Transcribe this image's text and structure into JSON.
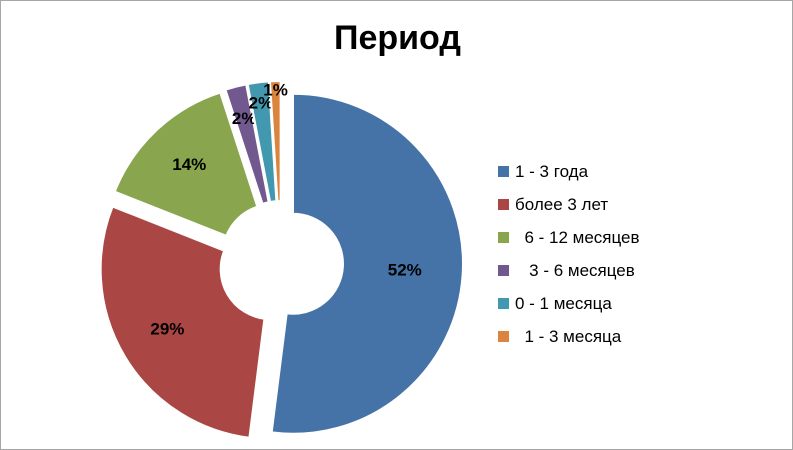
{
  "chart_data": {
    "type": "pie",
    "variant": "doughnut-exploded",
    "title": "Период",
    "labels": [
      "1 - 3 года",
      "более 3 лет",
      "  6 - 12 месяцев",
      "   3 - 6 месяцев",
      "0 - 1 месяца",
      "  1 - 3 месяца"
    ],
    "values": [
      52,
      29,
      14,
      2,
      2,
      1
    ],
    "value_labels": [
      "52%",
      "29%",
      "14%",
      "2%",
      "2%",
      "1%"
    ],
    "colors": [
      "#4572A7",
      "#AA4643",
      "#89A54E",
      "#71588F",
      "#4198AF",
      "#DB843D"
    ],
    "legend_position": "right"
  }
}
